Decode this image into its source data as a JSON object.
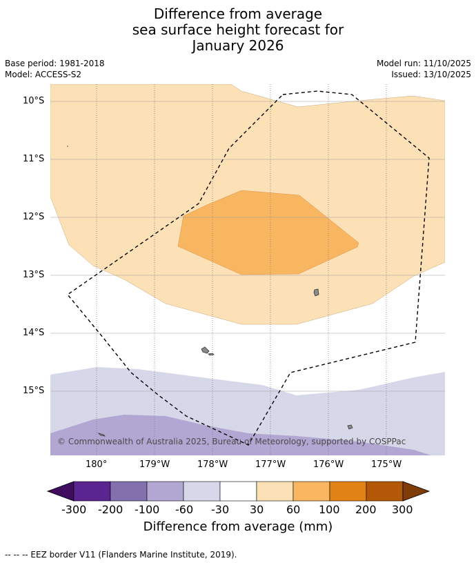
{
  "title": {
    "line1": "Difference from average",
    "line2": "sea surface height forecast for",
    "line3": "January 2026"
  },
  "meta": {
    "base_period": "Base period: 1981-2018",
    "model": "Model: ACCESS-S2",
    "model_run": "Model run: 11/10/2025",
    "issued": "Issued: 13/10/2025"
  },
  "map": {
    "lat_labels": [
      "10°S",
      "11°S",
      "12°S",
      "13°S",
      "14°S",
      "15°S"
    ],
    "lon_labels": [
      "180°",
      "179°W",
      "178°W",
      "177°W",
      "176°W",
      "175°W"
    ],
    "copyright": "© Commonwealth of Australia 2025, Bureau of Meteorology, supported by COSPPac",
    "fills": {
      "pos_30_60": "#fce0b6",
      "pos_60_100": "#f8b661",
      "neg_30_60": "#d7d7ea",
      "neg_60_100": "#b1a7d2"
    }
  },
  "colorbar": {
    "ticks": [
      "-300",
      "-200",
      "-100",
      "-60",
      "-30",
      "30",
      "60",
      "100",
      "200",
      "300"
    ],
    "colors": [
      "#3f0c60",
      "#5a2491",
      "#8371ad",
      "#b1a7d2",
      "#d7d7ea",
      "#ffffff",
      "#fce0b6",
      "#f8b661",
      "#e08214",
      "#b35806",
      "#7f3b08"
    ],
    "label": "Difference from average (mm)"
  },
  "footer": {
    "legend": "--  --  -- EEZ border V11 (Flanders Marine Institute, 2019)."
  }
}
